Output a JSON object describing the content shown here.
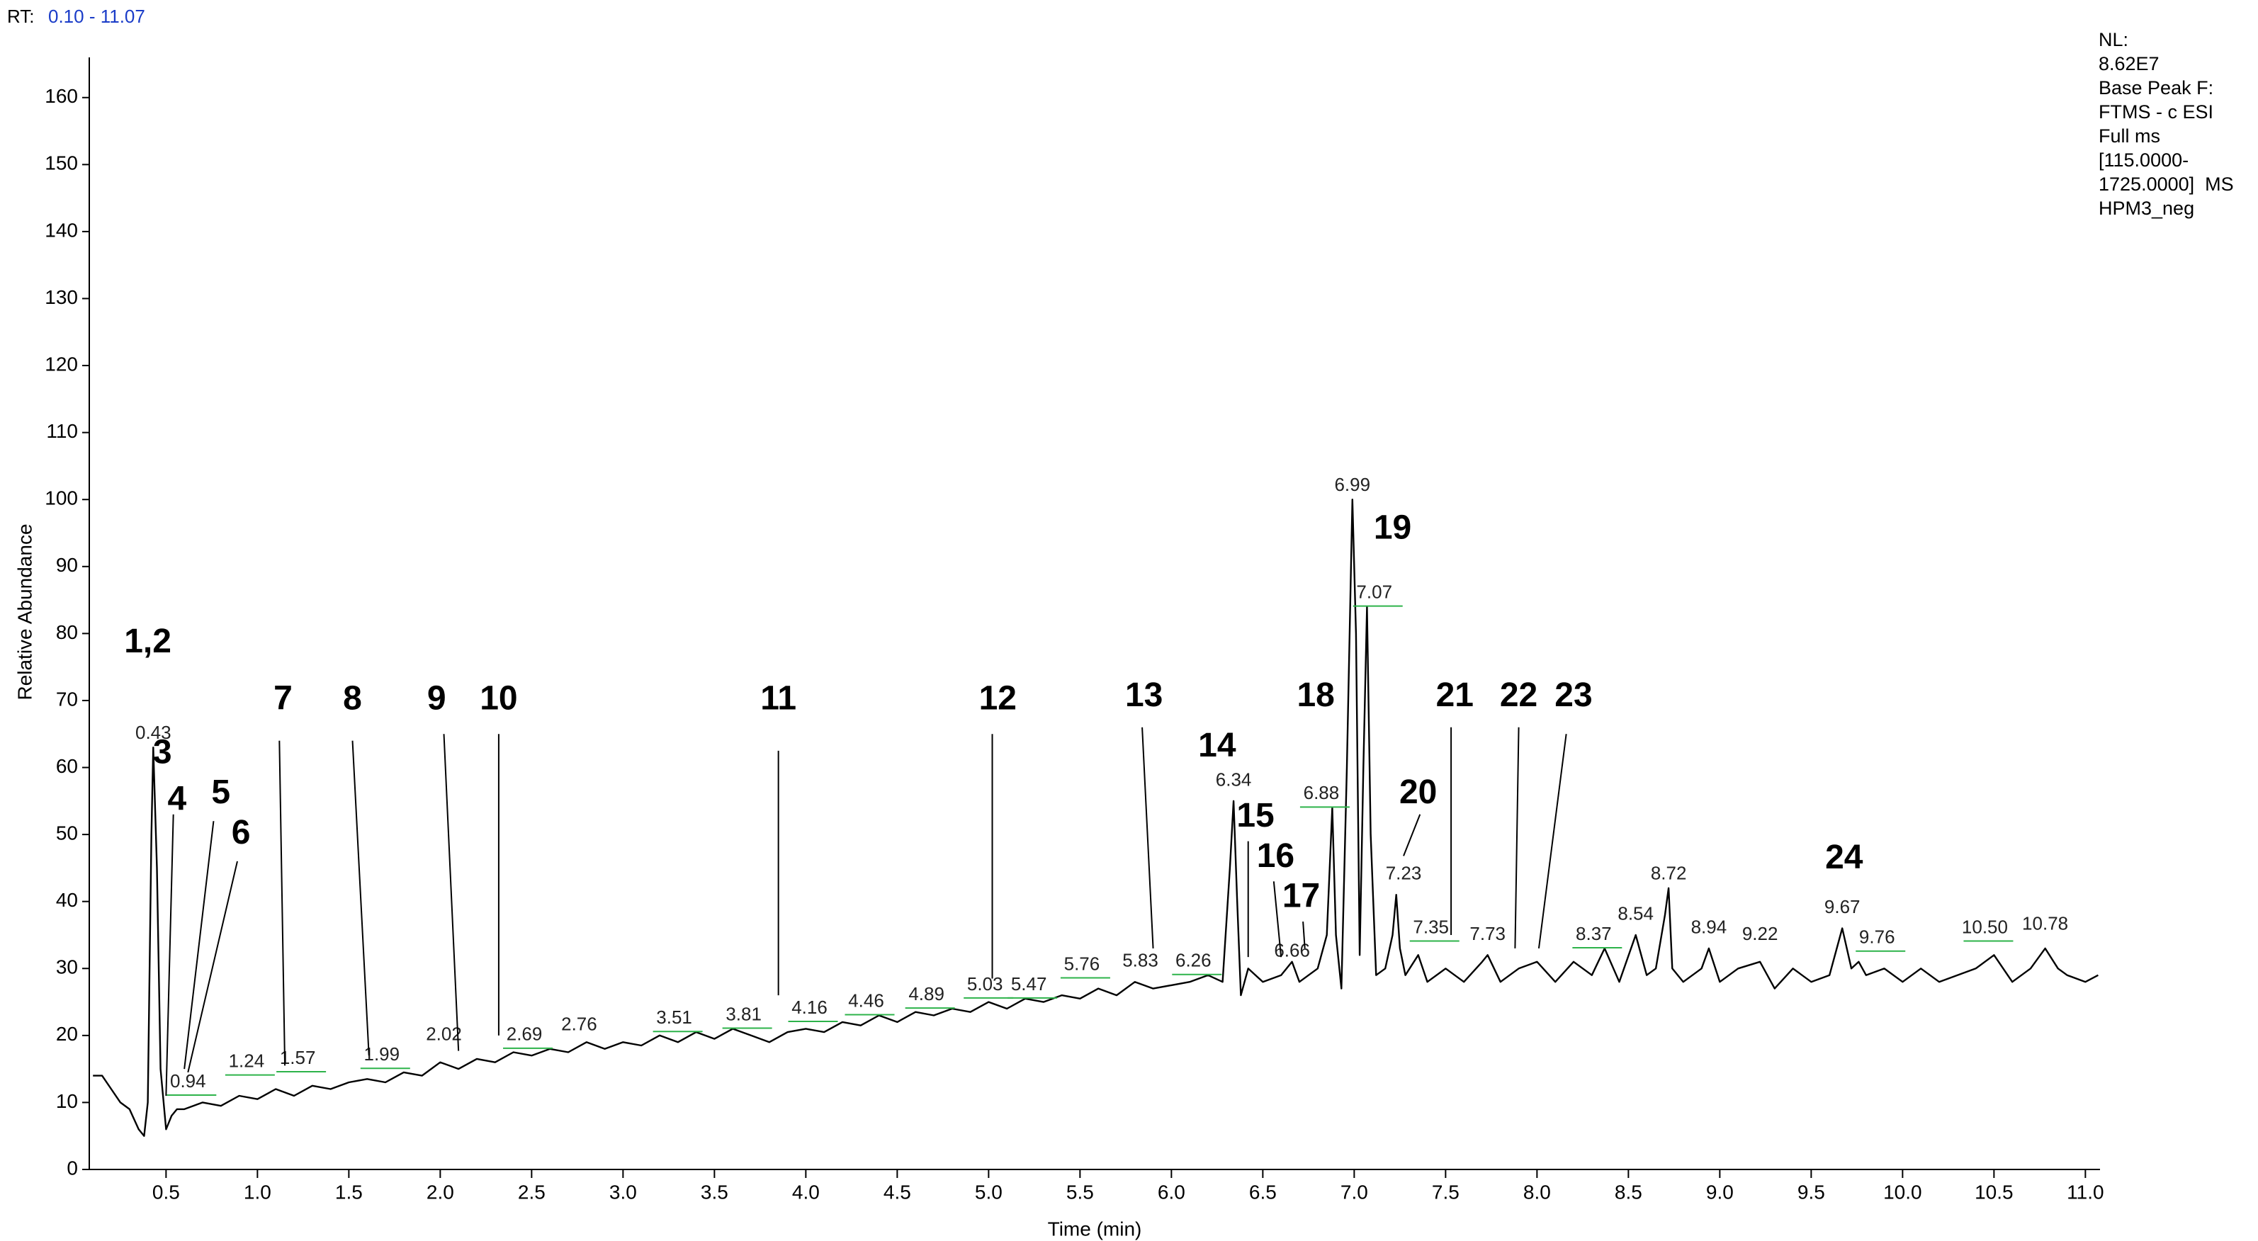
{
  "chart_data": {
    "type": "line",
    "header": {
      "rt": "RT:",
      "range": "0.10 - 11.07"
    },
    "info": [
      "NL:",
      "8.62E7",
      "Base Peak F:",
      "FTMS - c ESI",
      "Full ms",
      "[115.0000-",
      "1725.0000]  MS",
      "HPM3_neg"
    ],
    "xlabel": "Time (min)",
    "ylabel": "Relative Abundance",
    "color": "#000000",
    "xlim": [
      0.08,
      11.08
    ],
    "ylim": [
      0,
      166
    ],
    "xticks": [
      0.5,
      {
        "value": 1,
        "label": "1.0"
      },
      1.5,
      {
        "value": 2,
        "label": "2.0"
      },
      2.5,
      {
        "value": 3,
        "label": "3.0"
      },
      3.5,
      {
        "value": 4,
        "label": "4.0"
      },
      4.5,
      {
        "value": 5,
        "label": "5.0"
      },
      5.5,
      {
        "value": 6,
        "label": "6.0"
      },
      6.5,
      {
        "value": 7,
        "label": "7.0"
      },
      7.5,
      {
        "value": 8,
        "label": "8.0"
      },
      8.5,
      {
        "value": 9,
        "label": "9.0"
      },
      9.5,
      {
        "value": 10,
        "label": "10.0"
      },
      10.5,
      {
        "value": 11,
        "label": "11.0"
      }
    ],
    "yticks": [
      0,
      10,
      20,
      30,
      40,
      50,
      60,
      70,
      80,
      90,
      100,
      110,
      120,
      130,
      140,
      150,
      160
    ],
    "x": [
      0.1,
      0.15,
      0.2,
      0.25,
      0.3,
      0.35,
      0.38,
      0.4,
      0.42,
      0.43,
      0.45,
      0.47,
      0.5,
      0.53,
      0.56,
      0.6,
      0.7,
      0.8,
      0.9,
      1.0,
      1.1,
      1.2,
      1.3,
      1.4,
      1.5,
      1.6,
      1.7,
      1.8,
      1.9,
      2.0,
      2.1,
      2.2,
      2.3,
      2.4,
      2.5,
      2.6,
      2.7,
      2.8,
      2.9,
      3.0,
      3.1,
      3.2,
      3.3,
      3.4,
      3.5,
      3.6,
      3.7,
      3.8,
      3.9,
      4.0,
      4.1,
      4.2,
      4.3,
      4.4,
      4.5,
      4.6,
      4.7,
      4.8,
      4.9,
      5.0,
      5.1,
      5.2,
      5.3,
      5.4,
      5.5,
      5.6,
      5.7,
      5.8,
      5.9,
      6.0,
      6.1,
      6.2,
      6.28,
      6.32,
      6.34,
      6.36,
      6.38,
      6.42,
      6.5,
      6.6,
      6.66,
      6.7,
      6.8,
      6.85,
      6.88,
      6.9,
      6.93,
      6.96,
      6.99,
      7.01,
      7.03,
      7.05,
      7.07,
      7.09,
      7.12,
      7.17,
      7.21,
      7.23,
      7.25,
      7.28,
      7.35,
      7.4,
      7.5,
      7.6,
      7.7,
      7.73,
      7.8,
      7.9,
      8.0,
      8.1,
      8.2,
      8.3,
      8.37,
      8.45,
      8.54,
      8.6,
      8.65,
      8.7,
      8.72,
      8.74,
      8.8,
      8.9,
      8.94,
      9.0,
      9.1,
      9.22,
      9.3,
      9.4,
      9.5,
      9.6,
      9.67,
      9.72,
      9.76,
      9.8,
      9.9,
      10.0,
      10.1,
      10.2,
      10.3,
      10.4,
      10.5,
      10.6,
      10.7,
      10.78,
      10.85,
      10.9,
      11.0,
      11.07
    ],
    "values": [
      14,
      14,
      12,
      10,
      9,
      6,
      5,
      10,
      50,
      63,
      45,
      15,
      6,
      8,
      9,
      9,
      10,
      9.5,
      11,
      10.5,
      12,
      11,
      12.5,
      12,
      13,
      13.5,
      13,
      14.5,
      14,
      16,
      15,
      16.5,
      16,
      17.5,
      17,
      18,
      17.5,
      19,
      18,
      19,
      18.5,
      20,
      19,
      20.5,
      19.5,
      21,
      20,
      19,
      20.5,
      21,
      20.5,
      22,
      21.5,
      23,
      22,
      23.5,
      23,
      24,
      23.5,
      25,
      24,
      25.5,
      25,
      26,
      25.5,
      27,
      26,
      28,
      27,
      27.5,
      28,
      29,
      28,
      45,
      55,
      40,
      26,
      30,
      28,
      29,
      31,
      28,
      30,
      35,
      54,
      35,
      27,
      60,
      100,
      80,
      32,
      60,
      84,
      50,
      29,
      30,
      35,
      41,
      33,
      29,
      32,
      28,
      30,
      28,
      31,
      32,
      28,
      30,
      31,
      28,
      31,
      29,
      33,
      28,
      35,
      29,
      30,
      38,
      42,
      30,
      28,
      30,
      33,
      28,
      30,
      31,
      27,
      30,
      28,
      29,
      36,
      30,
      31,
      29,
      30,
      28,
      30,
      28,
      29,
      30,
      32,
      28,
      30,
      33,
      30,
      29,
      28,
      29
    ],
    "peak_labels": [
      {
        "label": "0.43",
        "x": 0.43,
        "y": 65,
        "underline": false
      },
      {
        "label": "0.94",
        "x": 0.62,
        "y": 13,
        "underline": true
      },
      {
        "label": "1.24",
        "x": 0.94,
        "y": 16,
        "underline": true
      },
      {
        "label": "1.57",
        "x": 1.22,
        "y": 16.5,
        "underline": true
      },
      {
        "label": "1.99",
        "x": 1.68,
        "y": 17,
        "underline": true
      },
      {
        "label": "2.02",
        "x": 2.02,
        "y": 20,
        "underline": false
      },
      {
        "label": "2.69",
        "x": 2.46,
        "y": 20,
        "underline": true
      },
      {
        "label": "2.76",
        "x": 2.76,
        "y": 21.5,
        "underline": false
      },
      {
        "label": "3.51",
        "x": 3.28,
        "y": 22.5,
        "underline": true
      },
      {
        "label": "3.81",
        "x": 3.66,
        "y": 23,
        "underline": true
      },
      {
        "label": "4.16",
        "x": 4.02,
        "y": 24,
        "underline": true
      },
      {
        "label": "4.46",
        "x": 4.33,
        "y": 25,
        "underline": true
      },
      {
        "label": "4.89",
        "x": 4.66,
        "y": 26,
        "underline": true
      },
      {
        "label": "5.03",
        "x": 4.98,
        "y": 27.5,
        "underline": true
      },
      {
        "label": "5.47",
        "x": 5.22,
        "y": 27.5,
        "underline": true
      },
      {
        "label": "5.76",
        "x": 5.51,
        "y": 30.5,
        "underline": true
      },
      {
        "label": "5.83",
        "x": 5.83,
        "y": 31,
        "underline": false
      },
      {
        "label": "6.26",
        "x": 6.12,
        "y": 31,
        "underline": true
      },
      {
        "label": "6.34",
        "x": 6.34,
        "y": 58,
        "underline": false
      },
      {
        "label": "6.66",
        "x": 6.66,
        "y": 32.5,
        "underline": false
      },
      {
        "label": "6.88",
        "x": 6.82,
        "y": 56,
        "underline": true
      },
      {
        "label": "6.99",
        "x": 6.99,
        "y": 102,
        "underline": false
      },
      {
        "label": "7.07",
        "x": 7.11,
        "y": 86,
        "underline": true
      },
      {
        "label": "7.23",
        "x": 7.27,
        "y": 44,
        "underline": false
      },
      {
        "label": "7.35",
        "x": 7.42,
        "y": 36,
        "underline": true
      },
      {
        "label": "7.73",
        "x": 7.73,
        "y": 35,
        "underline": false
      },
      {
        "label": "8.37",
        "x": 8.31,
        "y": 35,
        "underline": true
      },
      {
        "label": "8.54",
        "x": 8.54,
        "y": 38,
        "underline": false
      },
      {
        "label": "8.72",
        "x": 8.72,
        "y": 44,
        "underline": false
      },
      {
        "label": "8.94",
        "x": 8.94,
        "y": 36,
        "underline": false
      },
      {
        "label": "9.22",
        "x": 9.22,
        "y": 35,
        "underline": false
      },
      {
        "label": "9.67",
        "x": 9.67,
        "y": 39,
        "underline": false
      },
      {
        "label": "9.76",
        "x": 9.86,
        "y": 34.5,
        "underline": true
      },
      {
        "label": "10.50",
        "x": 10.45,
        "y": 36,
        "underline": true
      },
      {
        "label": "10.78",
        "x": 10.78,
        "y": 36.5,
        "underline": false
      }
    ],
    "compounds": [
      {
        "text": "1,2",
        "x": 0.4,
        "y": 78.5
      },
      {
        "text": "3",
        "x": 0.48,
        "y": 62
      },
      {
        "text": "4",
        "x": 0.56,
        "y": 55,
        "leader": [
          0.54,
          53,
          0.5,
          11
        ]
      },
      {
        "text": "5",
        "x": 0.8,
        "y": 56,
        "leader": [
          0.76,
          52,
          0.6,
          15
        ]
      },
      {
        "text": "6",
        "x": 0.91,
        "y": 50,
        "leader": [
          0.89,
          46,
          0.62,
          14.5
        ]
      },
      {
        "text": "7",
        "x": 1.14,
        "y": 70,
        "leader": [
          1.12,
          64,
          1.15,
          15.5
        ]
      },
      {
        "text": "8",
        "x": 1.52,
        "y": 70,
        "leader": [
          1.52,
          64,
          1.61,
          17
        ]
      },
      {
        "text": "9",
        "x": 1.98,
        "y": 70,
        "leader": [
          2.02,
          65,
          2.1,
          17.7
        ]
      },
      {
        "text": "10",
        "x": 2.32,
        "y": 70,
        "leader": [
          2.32,
          65,
          2.32,
          20
        ]
      },
      {
        "text": "11",
        "x": 3.85,
        "y": 70,
        "leader": [
          3.85,
          62.5,
          3.85,
          26
        ]
      },
      {
        "text": "12",
        "x": 5.05,
        "y": 70,
        "leader": [
          5.02,
          65,
          5.02,
          28.5
        ]
      },
      {
        "text": "13",
        "x": 5.85,
        "y": 70.5,
        "leader": [
          5.84,
          66,
          5.9,
          33
        ]
      },
      {
        "text": "14",
        "x": 6.25,
        "y": 63
      },
      {
        "text": "15",
        "x": 6.46,
        "y": 52.5,
        "leader": [
          6.42,
          49,
          6.42,
          31.7
        ]
      },
      {
        "text": "16",
        "x": 6.57,
        "y": 46.5,
        "leader": [
          6.56,
          43,
          6.6,
          31.7
        ]
      },
      {
        "text": "17",
        "x": 6.71,
        "y": 40.5,
        "leader": [
          6.72,
          37,
          6.73,
          33
        ]
      },
      {
        "text": "18",
        "x": 6.79,
        "y": 70.5
      },
      {
        "text": "19",
        "x": 7.21,
        "y": 95.5
      },
      {
        "text": "20",
        "x": 7.35,
        "y": 56,
        "leader": [
          7.36,
          53,
          7.27,
          46.8
        ]
      },
      {
        "text": "21",
        "x": 7.55,
        "y": 70.5,
        "leader": [
          7.53,
          66,
          7.53,
          35
        ]
      },
      {
        "text": "22",
        "x": 7.9,
        "y": 70.5,
        "leader": [
          7.9,
          66,
          7.88,
          33
        ]
      },
      {
        "text": "23",
        "x": 8.2,
        "y": 70.5,
        "leader": [
          8.16,
          65,
          8.01,
          33
        ]
      },
      {
        "text": "24",
        "x": 9.68,
        "y": 46.3
      }
    ]
  }
}
